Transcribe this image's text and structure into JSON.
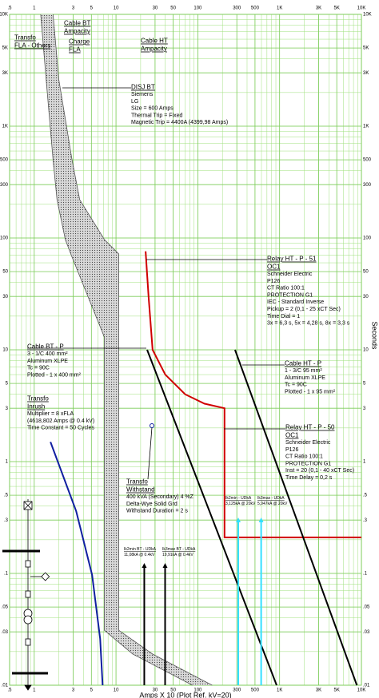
{
  "chart_data": {
    "type": "tcc",
    "xlabel": "Amps X 10 (Plot Ref. kV=20)",
    "ylabel": "Seconds",
    "xscale": "log",
    "yscale": "log",
    "xlim": [
      0.5,
      10000
    ],
    "ylim": [
      0.01,
      10000
    ],
    "xticks": [
      {
        "value": 0.5,
        "label": ".5"
      },
      1,
      3,
      5,
      10,
      30,
      50,
      100,
      300,
      500,
      {
        "value": 1000,
        "label": "1K"
      },
      {
        "value": 3000,
        "label": "3K"
      },
      {
        "value": 5000,
        "label": "5K"
      },
      {
        "value": 10000,
        "label": "10K"
      }
    ],
    "yticks": [
      {
        "value": 10000,
        "label": "10K"
      },
      {
        "value": 5000,
        "label": "5K"
      },
      {
        "value": 3000,
        "label": "3K"
      },
      {
        "value": 1000,
        "label": "1K"
      },
      500,
      300,
      100,
      50,
      30,
      10,
      5,
      3,
      1,
      {
        "value": 0.5,
        "label": ".5"
      },
      {
        "value": 0.3,
        "label": ".3"
      },
      {
        "value": 0.1,
        "label": ".1"
      },
      {
        "value": 0.05,
        "label": ".05"
      },
      {
        "value": 0.03,
        "label": ".03"
      },
      {
        "value": 0.01,
        "label": ".01"
      }
    ],
    "grid": true,
    "grid_color": "#9fe07c",
    "series": [
      {
        "color": "#d00000",
        "x": [
          23,
          25,
          28,
          40,
          70,
          120,
          212,
          212,
          10000
        ],
        "values": [
          76,
          30,
          10,
          6,
          4,
          3.3,
          3,
          0.21,
          0.21
        ]
      },
      {
        "color": "#000000",
        "x": [
          24,
          920
        ],
        "values": [
          10,
          0.01
        ]
      },
      {
        "color": "#000000",
        "x": [
          285,
          8800
        ],
        "values": [
          10,
          0.01
        ]
      },
      {
        "color": "#1020a0",
        "x": [
          1.58,
          3.26,
          5.1,
          6.4,
          6.86
        ],
        "values": [
          1.5,
          0.36,
          0.097,
          0.026,
          0.01
        ]
      }
    ],
    "band": {
      "color": "#555555",
      "values": [
        10000,
        2600,
        500,
        220,
        97,
        72,
        36,
        13,
        3.6,
        0.7,
        0.13,
        0.031,
        0.019,
        0.01
      ],
      "x_min": [
        1.2,
        1.4,
        1.7,
        1.9,
        2.4,
        2.8,
        4.1,
        7.2,
        7.2,
        7.2,
        7.2,
        7.2,
        16,
        86
      ],
      "x_max": [
        1.7,
        2,
        2.9,
        3.6,
        7.2,
        10.8,
        10.8,
        10.8,
        10.8,
        10.8,
        10.8,
        10.8,
        28,
        150
      ]
    },
    "arrows": [
      {
        "label": "Ik2min BT - UDkA",
        "sublabel": "11,08kA @ 0.4kV",
        "x": 22.16,
        "color": "#000000"
      },
      {
        "label": "Ik3max BT - UDkA",
        "sublabel": "19,91kA @ 0.4kV",
        "x": 39.82,
        "color": "#000000"
      },
      {
        "label": "Ik2min - UDkA",
        "sublabel": "3,125kA @ 20kV",
        "x": 312.5,
        "color": "#33e0ff"
      },
      {
        "label": "Ik3max - UDkA",
        "sublabel": "5,947kA @ 20kV",
        "x": 594.7,
        "color": "#33e0ff"
      }
    ],
    "annotations": [
      {
        "title": [
          "Transfo",
          "FLA - Others"
        ],
        "lines": []
      },
      {
        "title": [
          "Cable BT",
          "Ampacity"
        ],
        "lines": []
      },
      {
        "title": [
          "Charge",
          "FLA"
        ],
        "lines": []
      },
      {
        "title": [
          "Cable HT",
          "Ampacity"
        ],
        "lines": []
      },
      {
        "title": [
          "DISJ BT"
        ],
        "lines": [
          "Siemens",
          "LG",
          "Size = 600 Amps",
          "Thermal Trip = Fixed",
          "Magnetic Trip = 4400A (4399,98 Amps)"
        ]
      },
      {
        "title": [
          "Relay HT - P - 51",
          "OC1"
        ],
        "lines": [
          "Schneider Electric",
          "P126",
          "CT Ratio 100:1",
          "PROTECTION G1",
          "IEC - Standard Inverse",
          "Pickup = 2 (0,1 - 25  xCT Sec)",
          "Time Dial = 1",
          "3x = 6,3 s, 5x = 4,28 s, 8x = 3,3 s"
        ]
      },
      {
        "title": [
          "Cable BT - P"
        ],
        "lines": [
          "3 - 1/C 400 mm²",
          "Aluminum  XLPE",
          "Tc = 90C",
          "Plotted - 1 x 400 mm²"
        ]
      },
      {
        "title": [
          "Cable HT - P"
        ],
        "lines": [
          "1 - 3/C 95 mm²",
          "Aluminum  XLPE",
          "Tc = 90C",
          "Plotted - 1 x 95 mm²"
        ]
      },
      {
        "title": [
          "Transfo",
          "Inrush"
        ],
        "lines": [
          "Multiplier = 8 xFLA",
          "(4618,802 Amps @ 0.4 kV)",
          "Time Constant = 50 Cycles"
        ]
      },
      {
        "title": [
          "Relay HT - P - 50",
          "OC1"
        ],
        "lines": [
          "Schneider Electric",
          "P126",
          "CT Ratio 100:1",
          "PROTECTION G1",
          "Inst = 20 (0,1 - 40  xCT Sec)",
          "Time Delay = 0,2 s"
        ]
      },
      {
        "title": [
          "Transfo",
          "Withstand"
        ],
        "lines": [
          "400 kVA (Secondary)  4 %Z",
          "Delta-Wye Solid Grd",
          "Withstand Duration = 2 s"
        ]
      }
    ]
  }
}
